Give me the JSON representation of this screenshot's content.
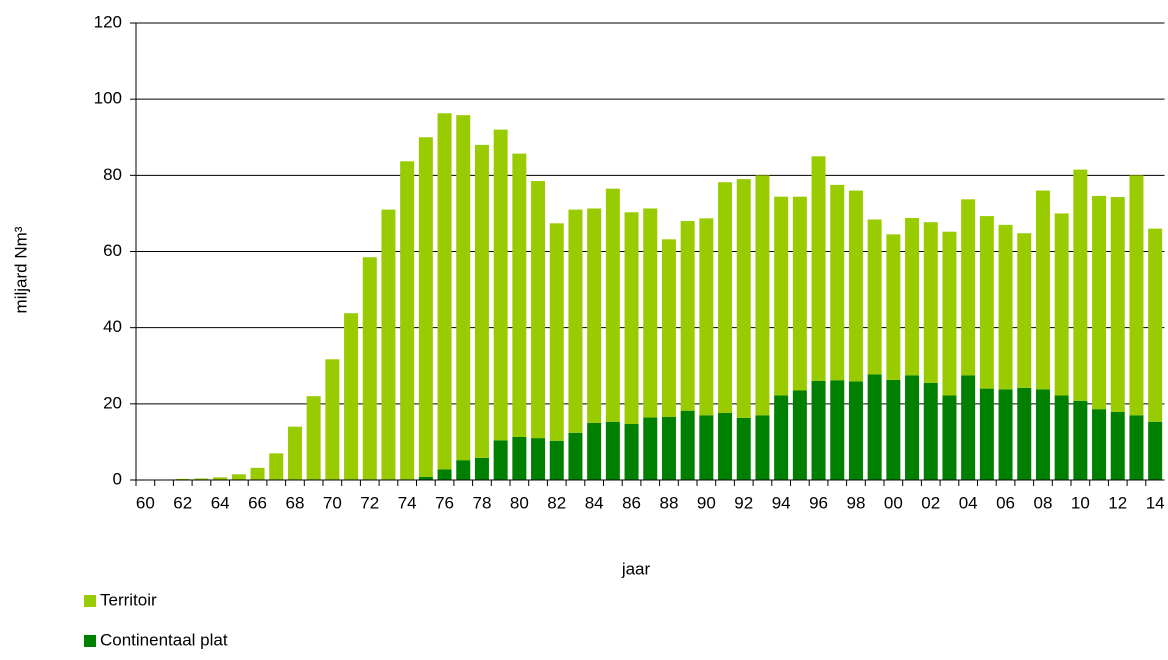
{
  "chart_data": {
    "type": "bar",
    "stacked": true,
    "x_label": "jaar",
    "y_label": "miljard Nm³",
    "categories": [
      "60",
      null,
      "62",
      null,
      "64",
      null,
      "66",
      null,
      "68",
      null,
      "70",
      null,
      "72",
      null,
      "74",
      null,
      "76",
      null,
      "78",
      null,
      "80",
      null,
      "82",
      null,
      "84",
      null,
      "86",
      null,
      "88",
      null,
      "90",
      null,
      "92",
      null,
      "94",
      null,
      "96",
      null,
      "98",
      null,
      "00",
      null,
      "02",
      null,
      "04",
      null,
      "06",
      null,
      "08",
      null,
      "10",
      null,
      "12",
      null,
      "14"
    ],
    "series": [
      {
        "name": "Continentaal plat",
        "color": "#008000",
        "values": [
          0,
          0,
          0,
          0,
          0,
          0,
          0,
          0,
          0,
          0,
          0,
          0,
          0,
          0,
          0,
          0.8,
          2.8,
          5.2,
          5.8,
          10.4,
          11.3,
          11,
          10.3,
          12.4,
          15,
          15.3,
          14.7,
          16.4,
          16.6,
          18.2,
          17,
          17.6,
          16.3,
          17,
          22.2,
          23.5,
          26,
          26.2,
          25.9,
          27.7,
          26.3,
          27.5,
          25.5,
          22.2,
          27.5,
          24,
          23.8,
          24.2,
          23.8,
          22.2,
          20.8,
          18.6,
          17.9,
          17,
          15.3
        ]
      },
      {
        "name": "Territoir",
        "color": "#99cc00",
        "values": [
          0,
          0,
          0.3,
          0.4,
          0.7,
          1.5,
          3.2,
          7,
          14,
          22,
          31.7,
          43.8,
          58.5,
          71,
          83.7,
          89.2,
          93.5,
          90.6,
          82.2,
          81.6,
          74.4,
          67.5,
          57.1,
          58.6,
          56.3,
          61.2,
          55.6,
          54.9,
          46.6,
          49.8,
          51.7,
          60.6,
          62.7,
          63,
          52.2,
          50.9,
          59,
          51.3,
          50.1,
          40.7,
          38.2,
          41.3,
          42.2,
          43,
          46.2,
          45.3,
          43.2,
          40.6,
          52.2,
          47.8,
          60.7,
          56,
          56.4,
          63,
          50.7
        ]
      }
    ],
    "ylim": [
      0,
      120
    ],
    "yticks": [
      0,
      20,
      40,
      60,
      80,
      100,
      120
    ],
    "grid": true,
    "legend": "bottom-left"
  }
}
